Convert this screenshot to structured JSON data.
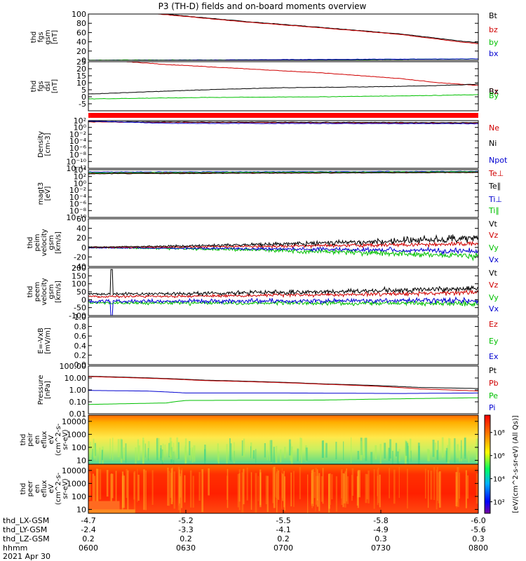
{
  "title": "P3 (TH-D) fields and on-board moments overview",
  "chart_data": {
    "type": "line",
    "title": "P3 (TH-D) fields and on-board moments overview",
    "date": "2021 Apr 30",
    "panels": [
      {
        "id": "fgs_gsm",
        "ylabel": [
          "thd",
          "fgs",
          "gsm",
          "[nT]"
        ],
        "ylim": [
          0,
          100
        ],
        "ticks": [
          "100",
          "80",
          "60",
          "40",
          "20",
          "0"
        ],
        "tick_values": [
          100,
          80,
          60,
          40,
          20,
          0
        ],
        "legend": [
          {
            "name": "Bt",
            "color": "#000000"
          },
          {
            "name": "bz",
            "color": "#d00000"
          },
          {
            "name": "by",
            "color": "#00c000"
          },
          {
            "name": "bx",
            "color": "#0000d0"
          }
        ],
        "series": [
          {
            "name": "Bt",
            "color": "#000000",
            "x": [
              0,
              0.22,
              0.4,
              0.6,
              0.8,
              0.95,
              1
            ],
            "values": [
              115,
              98,
              84,
              71,
              57,
              42,
              38
            ]
          },
          {
            "name": "bz",
            "color": "#d00000",
            "x": [
              0,
              0.22,
              0.4,
              0.6,
              0.8,
              0.95,
              1
            ],
            "values": [
              114,
              97,
              83,
              70,
              56,
              40,
              36
            ]
          },
          {
            "name": "by",
            "color": "#00c000",
            "x": [
              0,
              0.5,
              1
            ],
            "values": [
              0.5,
              1,
              3
            ]
          },
          {
            "name": "bx",
            "color": "#0000d0",
            "x": [
              0,
              0.3,
              0.5,
              0.8,
              1
            ],
            "values": [
              0,
              0.5,
              1.5,
              2.5,
              3
            ]
          }
        ]
      },
      {
        "id": "fgs_dsl",
        "ylabel": [
          "thd",
          "fgs",
          "dsl",
          "[nT]"
        ],
        "ylim": [
          -10,
          25
        ],
        "ticks": [
          "25",
          "20",
          "15",
          "10",
          "5",
          "0",
          "-5"
        ],
        "tick_values": [
          25,
          20,
          15,
          10,
          5,
          0,
          -5
        ],
        "legend": [
          {
            "name": "Bz",
            "color": "#d00000"
          },
          {
            "name": "Bx",
            "color": "#000000"
          },
          {
            "name": "By",
            "color": "#00c000"
          }
        ],
        "series": [
          {
            "name": "Bz",
            "color": "#d00000",
            "x": [
              0,
              0.2,
              0.4,
              0.6,
              0.8,
              0.9,
              1
            ],
            "values": [
              27,
              23,
              20,
              17,
              13,
              10,
              8
            ]
          },
          {
            "name": "Bx",
            "color": "#000000",
            "x": [
              0,
              0.15,
              0.3,
              0.5,
              0.7,
              0.9,
              1
            ],
            "values": [
              2,
              3.5,
              5,
              6.5,
              7,
              8,
              9
            ]
          },
          {
            "name": "By",
            "color": "#00c000",
            "x": [
              0,
              0.3,
              0.6,
              0.9,
              1
            ],
            "values": [
              -1.5,
              -0.5,
              0,
              1,
              1.5
            ]
          }
        ]
      },
      {
        "id": "density",
        "ylabel": [
          "Density",
          "[cm-3]"
        ],
        "ylim": [
          1e-12,
          100
        ],
        "yscale": "log",
        "ticks": [
          "10²",
          "10⁰",
          "10⁻²",
          "10⁻⁴",
          "10⁻⁶",
          "10⁻⁸",
          "10⁻¹⁰",
          "10⁻¹²"
        ],
        "tick_values": [
          2,
          0,
          -2,
          -4,
          -6,
          -8,
          -10,
          -12
        ],
        "legend": [
          {
            "name": "Ne",
            "color": "#d00000"
          },
          {
            "name": "Ni",
            "color": "#000000"
          },
          {
            "name": "Npot",
            "color": "#0000d0"
          }
        ],
        "series": [
          {
            "name": "Ne",
            "color": "#d00000",
            "x": [
              0,
              1
            ],
            "values": [
              1.6,
              1.2
            ]
          },
          {
            "name": "Ni",
            "color": "#000000",
            "x": [
              0,
              1
            ],
            "values": [
              1.7,
              1.4
            ]
          },
          {
            "name": "Npot",
            "color": "#0000d0",
            "x": [
              0,
              0.2,
              1
            ],
            "values": [
              1.9,
              1.2,
              1.1
            ]
          }
        ]
      },
      {
        "id": "temperature",
        "ylabel": [
          "magt3",
          "[eV]"
        ],
        "ylim": [
          1e-10,
          10000.0
        ],
        "yscale": "log",
        "ticks": [
          "10⁴",
          "10²",
          "10⁰",
          "10⁻²",
          "10⁻⁴",
          "10⁻⁶",
          "10⁻⁸",
          "10⁻¹⁰"
        ],
        "tick_values": [
          4,
          2,
          0,
          -2,
          -4,
          -6,
          -8,
          -10
        ],
        "legend": [
          {
            "name": "Te⊥",
            "color": "#d00000"
          },
          {
            "name": "Te∥",
            "color": "#000000"
          },
          {
            "name": "Ti⊥",
            "color": "#0000d0"
          },
          {
            "name": "Ti∥",
            "color": "#00c000"
          }
        ],
        "series": [
          {
            "name": "Ti⊥",
            "color": "#0000d0",
            "x": [
              0,
              1
            ],
            "values": [
              3.3,
              3.5
            ]
          },
          {
            "name": "Ti∥",
            "color": "#00c000",
            "x": [
              0,
              1
            ],
            "values": [
              3.1,
              3.4
            ]
          },
          {
            "name": "Te⊥",
            "color": "#d00000",
            "x": [
              0,
              1
            ],
            "values": [
              2.9,
              3.2
            ]
          },
          {
            "name": "Te∥",
            "color": "#000000",
            "x": [
              0,
              1
            ],
            "values": [
              2.8,
              3.2
            ]
          }
        ]
      },
      {
        "id": "peim_velocity",
        "ylabel": [
          "thd",
          "peim",
          "velocity",
          "gsm",
          "[km/s]"
        ],
        "ylim": [
          -40,
          60
        ],
        "ticks": [
          "60",
          "40",
          "20",
          "0",
          "-20",
          "-40"
        ],
        "tick_values": [
          60,
          40,
          20,
          0,
          -20,
          -40
        ],
        "legend": [
          {
            "name": "Vt",
            "color": "#000000"
          },
          {
            "name": "Vz",
            "color": "#d00000"
          },
          {
            "name": "Vy",
            "color": "#00c000"
          },
          {
            "name": "Vx",
            "color": "#0000d0"
          }
        ]
      },
      {
        "id": "peem_velocity",
        "ylabel": [
          "thd",
          "peem",
          "velocity",
          "gsm",
          "[km/s]"
        ],
        "ylim": [
          -100,
          200
        ],
        "ticks": [
          "200",
          "150",
          "100",
          "50",
          "0",
          "-50",
          "-100"
        ],
        "tick_values": [
          200,
          150,
          100,
          50,
          0,
          -50,
          -100
        ],
        "legend": [
          {
            "name": "Vt",
            "color": "#000000"
          },
          {
            "name": "Vz",
            "color": "#d00000"
          },
          {
            "name": "Vy",
            "color": "#00c000"
          },
          {
            "name": "Vx",
            "color": "#0000d0"
          }
        ]
      },
      {
        "id": "efield",
        "ylabel": [
          "E=-VxB",
          "[mV/m]"
        ],
        "ylim": [
          0,
          1
        ],
        "ticks": [
          "1.0",
          "0.8",
          "0.6",
          "0.4",
          "0.2",
          "0.0"
        ],
        "tick_values": [
          1,
          0.8,
          0.6,
          0.4,
          0.2,
          0
        ],
        "legend": [
          {
            "name": "Ez",
            "color": "#d00000"
          },
          {
            "name": "Ey",
            "color": "#00c000"
          },
          {
            "name": "Ex",
            "color": "#0000d0"
          }
        ]
      },
      {
        "id": "pressure",
        "ylabel": [
          "Pressure",
          "[nPa]"
        ],
        "ylim": [
          0.01,
          100
        ],
        "yscale": "log",
        "ticks": [
          "100.00",
          "10.00",
          "1.00",
          "0.10",
          "0.01"
        ],
        "tick_values": [
          100,
          10,
          1,
          0.1,
          0.01
        ],
        "legend": [
          {
            "name": "Pt",
            "color": "#000000"
          },
          {
            "name": "Pb",
            "color": "#d00000"
          },
          {
            "name": "Pe",
            "color": "#00c000"
          },
          {
            "name": "Pi",
            "color": "#0000d0"
          }
        ],
        "series": [
          {
            "name": "Pt",
            "color": "#000000",
            "x": [
              0,
              0.3,
              0.6,
              0.85,
              1
            ],
            "values": [
              14,
              6.5,
              3.2,
              1.6,
              1.3
            ]
          },
          {
            "name": "Pb",
            "color": "#d00000",
            "x": [
              0,
              0.3,
              0.6,
              0.85,
              1
            ],
            "values": [
              13,
              6,
              3,
              1.2,
              0.8
            ]
          },
          {
            "name": "Pi",
            "color": "#0000d0",
            "x": [
              0,
              0.15,
              0.25,
              0.5,
              0.8,
              1
            ],
            "values": [
              0.9,
              0.8,
              0.55,
              0.55,
              0.5,
              0.55
            ]
          },
          {
            "name": "Pe",
            "color": "#00c000",
            "x": [
              0,
              0.2,
              0.25,
              0.6,
              1
            ],
            "values": [
              0.06,
              0.08,
              0.13,
              0.14,
              0.22
            ]
          }
        ]
      },
      {
        "id": "peir_spectrogram",
        "type": "heatmap",
        "ylabel": [
          "thd",
          "peir",
          "en",
          "eflux",
          "eV",
          "(cm^2-s-",
          "sr-eV)"
        ],
        "ylim": [
          5,
          30000
        ],
        "yscale": "log",
        "ticks": [
          "10000",
          "1000",
          "100",
          "10"
        ],
        "tick_values": [
          10000,
          1000,
          100,
          10
        ]
      },
      {
        "id": "peer_spectrogram",
        "type": "heatmap",
        "ylabel": [
          "thd",
          "peer",
          "en",
          "eflux",
          "eV",
          "(cm^2-s-",
          "sr-eV)"
        ],
        "ylim": [
          5,
          30000
        ],
        "yscale": "log",
        "ticks": [
          "10000",
          "1000",
          "100",
          "10"
        ],
        "tick_values": [
          10000,
          1000,
          100,
          10
        ]
      }
    ],
    "colorbar": {
      "label": "[eV/(cm^2-s-sr-eV) (All Qs)]",
      "ticks": [
        "10⁸",
        "10⁶",
        "10⁴",
        "10²"
      ],
      "tick_values": [
        8,
        6,
        4,
        2
      ]
    },
    "x_axis": {
      "ticks": [
        "0600",
        "0630",
        "0700",
        "0730",
        "0800"
      ],
      "tick_values": [
        0,
        0.25,
        0.5,
        0.75,
        1
      ],
      "rows": [
        {
          "label": "thd_LX-GSM",
          "values": [
            "-4.7",
            "-5.2",
            "-5.5",
            "-5.8",
            "-6.0"
          ]
        },
        {
          "label": "thd_LY-GSM",
          "values": [
            "-2.4",
            "-3.3",
            "-4.1",
            "-4.9",
            "-5.6"
          ]
        },
        {
          "label": "thd_LZ-GSM",
          "values": [
            "0.2",
            "0.2",
            "0.2",
            "0.3",
            "0.3"
          ]
        },
        {
          "label": "hhmm",
          "values": [
            "0600",
            "0630",
            "0700",
            "0730",
            "0800"
          ]
        }
      ]
    }
  }
}
